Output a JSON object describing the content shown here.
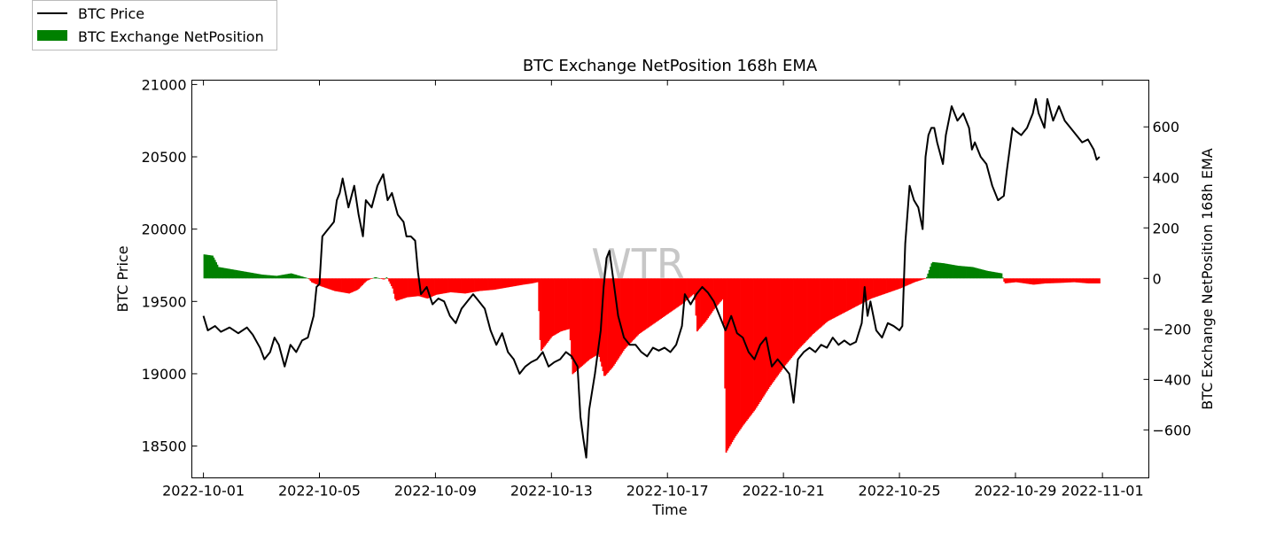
{
  "chart_data": {
    "type": "line",
    "title": "BTC Exchange NetPosition 168h EMA",
    "xlabel": "Time",
    "ylabel_left": "BTC Price",
    "ylabel_right": "BTC Exchange NetPosition 168h EMA",
    "watermark": "WTR",
    "x_range_days": [
      -0.4,
      32.6
    ],
    "x_ticks": [
      {
        "day": 0,
        "label": "2022-10-01"
      },
      {
        "day": 4,
        "label": "2022-10-05"
      },
      {
        "day": 8,
        "label": "2022-10-09"
      },
      {
        "day": 12,
        "label": "2022-10-13"
      },
      {
        "day": 16,
        "label": "2022-10-17"
      },
      {
        "day": 20,
        "label": "2022-10-21"
      },
      {
        "day": 24,
        "label": "2022-10-25"
      },
      {
        "day": 28,
        "label": "2022-10-29"
      },
      {
        "day": 31,
        "label": "2022-11-01"
      }
    ],
    "y_left_range": [
      18280,
      21030
    ],
    "y_left_ticks": [
      18500,
      19000,
      19500,
      20000,
      20500,
      21000
    ],
    "y_right_range": [
      -790,
      785
    ],
    "y_right_ticks": [
      -600,
      -400,
      -200,
      0,
      200,
      400,
      600
    ],
    "legend": [
      {
        "label": "BTC Price",
        "kind": "line",
        "color": "#000000"
      },
      {
        "label": "BTC Exchange NetPosition",
        "kind": "bar",
        "color": "#008000"
      }
    ],
    "positive_color": "#008000",
    "negative_color": "#ff0000",
    "series": [
      {
        "name": "BTC Price",
        "axis": "left",
        "points": [
          [
            0.0,
            19400
          ],
          [
            0.15,
            19300
          ],
          [
            0.4,
            19330
          ],
          [
            0.6,
            19290
          ],
          [
            0.9,
            19320
          ],
          [
            1.2,
            19280
          ],
          [
            1.5,
            19320
          ],
          [
            1.7,
            19270
          ],
          [
            1.95,
            19180
          ],
          [
            2.1,
            19100
          ],
          [
            2.3,
            19150
          ],
          [
            2.45,
            19250
          ],
          [
            2.6,
            19200
          ],
          [
            2.8,
            19050
          ],
          [
            3.0,
            19200
          ],
          [
            3.2,
            19150
          ],
          [
            3.4,
            19230
          ],
          [
            3.6,
            19250
          ],
          [
            3.8,
            19400
          ],
          [
            3.9,
            19600
          ],
          [
            4.0,
            19620
          ],
          [
            4.1,
            19950
          ],
          [
            4.3,
            20000
          ],
          [
            4.5,
            20050
          ],
          [
            4.6,
            20200
          ],
          [
            4.7,
            20250
          ],
          [
            4.8,
            20350
          ],
          [
            4.9,
            20250
          ],
          [
            5.0,
            20150
          ],
          [
            5.2,
            20300
          ],
          [
            5.35,
            20100
          ],
          [
            5.5,
            19950
          ],
          [
            5.6,
            20200
          ],
          [
            5.8,
            20150
          ],
          [
            6.0,
            20300
          ],
          [
            6.2,
            20380
          ],
          [
            6.35,
            20200
          ],
          [
            6.5,
            20250
          ],
          [
            6.7,
            20100
          ],
          [
            6.9,
            20050
          ],
          [
            7.0,
            19950
          ],
          [
            7.15,
            19950
          ],
          [
            7.3,
            19920
          ],
          [
            7.4,
            19700
          ],
          [
            7.5,
            19550
          ],
          [
            7.7,
            19600
          ],
          [
            7.9,
            19480
          ],
          [
            8.1,
            19520
          ],
          [
            8.3,
            19500
          ],
          [
            8.5,
            19400
          ],
          [
            8.7,
            19350
          ],
          [
            8.9,
            19450
          ],
          [
            9.1,
            19500
          ],
          [
            9.3,
            19550
          ],
          [
            9.5,
            19500
          ],
          [
            9.7,
            19450
          ],
          [
            9.9,
            19300
          ],
          [
            10.1,
            19200
          ],
          [
            10.3,
            19280
          ],
          [
            10.5,
            19150
          ],
          [
            10.7,
            19100
          ],
          [
            10.9,
            19000
          ],
          [
            11.1,
            19050
          ],
          [
            11.3,
            19080
          ],
          [
            11.5,
            19100
          ],
          [
            11.7,
            19150
          ],
          [
            11.9,
            19050
          ],
          [
            12.1,
            19080
          ],
          [
            12.3,
            19100
          ],
          [
            12.5,
            19150
          ],
          [
            12.7,
            19120
          ],
          [
            12.9,
            19050
          ],
          [
            13.0,
            18700
          ],
          [
            13.1,
            18550
          ],
          [
            13.2,
            18420
          ],
          [
            13.3,
            18750
          ],
          [
            13.5,
            19000
          ],
          [
            13.7,
            19300
          ],
          [
            13.8,
            19600
          ],
          [
            13.9,
            19800
          ],
          [
            14.0,
            19850
          ],
          [
            14.1,
            19700
          ],
          [
            14.3,
            19400
          ],
          [
            14.5,
            19250
          ],
          [
            14.7,
            19200
          ],
          [
            14.9,
            19200
          ],
          [
            15.1,
            19150
          ],
          [
            15.3,
            19120
          ],
          [
            15.5,
            19180
          ],
          [
            15.7,
            19160
          ],
          [
            15.9,
            19180
          ],
          [
            16.1,
            19150
          ],
          [
            16.3,
            19200
          ],
          [
            16.5,
            19330
          ],
          [
            16.6,
            19550
          ],
          [
            16.8,
            19480
          ],
          [
            17.0,
            19550
          ],
          [
            17.2,
            19600
          ],
          [
            17.4,
            19560
          ],
          [
            17.6,
            19500
          ],
          [
            17.8,
            19400
          ],
          [
            18.0,
            19300
          ],
          [
            18.2,
            19400
          ],
          [
            18.4,
            19280
          ],
          [
            18.6,
            19250
          ],
          [
            18.8,
            19150
          ],
          [
            19.0,
            19100
          ],
          [
            19.2,
            19200
          ],
          [
            19.4,
            19250
          ],
          [
            19.6,
            19050
          ],
          [
            19.8,
            19100
          ],
          [
            20.0,
            19050
          ],
          [
            20.2,
            19000
          ],
          [
            20.35,
            18800
          ],
          [
            20.5,
            19100
          ],
          [
            20.7,
            19150
          ],
          [
            20.9,
            19180
          ],
          [
            21.1,
            19150
          ],
          [
            21.3,
            19200
          ],
          [
            21.5,
            19180
          ],
          [
            21.7,
            19250
          ],
          [
            21.9,
            19200
          ],
          [
            22.1,
            19230
          ],
          [
            22.3,
            19200
          ],
          [
            22.5,
            19220
          ],
          [
            22.7,
            19350
          ],
          [
            22.8,
            19600
          ],
          [
            22.9,
            19400
          ],
          [
            23.0,
            19500
          ],
          [
            23.2,
            19300
          ],
          [
            23.4,
            19250
          ],
          [
            23.6,
            19350
          ],
          [
            23.8,
            19330
          ],
          [
            24.0,
            19300
          ],
          [
            24.1,
            19330
          ],
          [
            24.2,
            19900
          ],
          [
            24.35,
            20300
          ],
          [
            24.5,
            20200
          ],
          [
            24.65,
            20150
          ],
          [
            24.8,
            20000
          ],
          [
            24.9,
            20500
          ],
          [
            25.0,
            20650
          ],
          [
            25.1,
            20700
          ],
          [
            25.2,
            20700
          ],
          [
            25.3,
            20600
          ],
          [
            25.5,
            20450
          ],
          [
            25.6,
            20650
          ],
          [
            25.8,
            20850
          ],
          [
            26.0,
            20750
          ],
          [
            26.2,
            20800
          ],
          [
            26.4,
            20700
          ],
          [
            26.5,
            20550
          ],
          [
            26.6,
            20600
          ],
          [
            26.8,
            20500
          ],
          [
            27.0,
            20450
          ],
          [
            27.2,
            20300
          ],
          [
            27.4,
            20200
          ],
          [
            27.6,
            20230
          ],
          [
            27.7,
            20400
          ],
          [
            27.8,
            20550
          ],
          [
            27.9,
            20700
          ],
          [
            28.0,
            20680
          ],
          [
            28.2,
            20650
          ],
          [
            28.4,
            20700
          ],
          [
            28.6,
            20800
          ],
          [
            28.7,
            20900
          ],
          [
            28.8,
            20800
          ],
          [
            29.0,
            20700
          ],
          [
            29.1,
            20900
          ],
          [
            29.3,
            20750
          ],
          [
            29.5,
            20850
          ],
          [
            29.7,
            20750
          ],
          [
            29.9,
            20700
          ],
          [
            30.1,
            20650
          ],
          [
            30.3,
            20600
          ],
          [
            30.5,
            20620
          ],
          [
            30.7,
            20550
          ],
          [
            30.8,
            20480
          ],
          [
            30.9,
            20500
          ]
        ]
      },
      {
        "name": "BTC Exchange NetPosition",
        "axis": "right",
        "points": [
          [
            0.0,
            95
          ],
          [
            0.3,
            90
          ],
          [
            0.5,
            45
          ],
          [
            1.0,
            35
          ],
          [
            1.5,
            25
          ],
          [
            2.0,
            15
          ],
          [
            2.5,
            10
          ],
          [
            3.0,
            20
          ],
          [
            3.3,
            10
          ],
          [
            3.6,
            0
          ],
          [
            3.7,
            -15
          ],
          [
            4.0,
            -30
          ],
          [
            4.5,
            -50
          ],
          [
            5.0,
            -60
          ],
          [
            5.3,
            -45
          ],
          [
            5.6,
            -10
          ],
          [
            5.9,
            5
          ],
          [
            6.2,
            -5
          ],
          [
            6.3,
            5
          ],
          [
            6.5,
            -40
          ],
          [
            6.6,
            -90
          ],
          [
            7.0,
            -75
          ],
          [
            7.4,
            -70
          ],
          [
            7.7,
            -80
          ],
          [
            8.0,
            -65
          ],
          [
            8.5,
            -55
          ],
          [
            9.0,
            -60
          ],
          [
            9.5,
            -50
          ],
          [
            10.0,
            -45
          ],
          [
            10.5,
            -35
          ],
          [
            11.0,
            -25
          ],
          [
            11.3,
            -20
          ],
          [
            11.5,
            -15
          ],
          [
            11.6,
            -290
          ],
          [
            11.8,
            -260
          ],
          [
            12.0,
            -230
          ],
          [
            12.3,
            -210
          ],
          [
            12.6,
            -200
          ],
          [
            12.7,
            -380
          ],
          [
            13.0,
            -350
          ],
          [
            13.3,
            -320
          ],
          [
            13.6,
            -300
          ],
          [
            13.8,
            -390
          ],
          [
            14.1,
            -350
          ],
          [
            14.5,
            -280
          ],
          [
            15.0,
            -220
          ],
          [
            15.5,
            -180
          ],
          [
            16.0,
            -140
          ],
          [
            16.5,
            -100
          ],
          [
            16.9,
            -60
          ],
          [
            17.0,
            -210
          ],
          [
            17.3,
            -170
          ],
          [
            17.6,
            -120
          ],
          [
            17.9,
            -80
          ],
          [
            18.0,
            -690
          ],
          [
            18.3,
            -630
          ],
          [
            18.6,
            -580
          ],
          [
            19.0,
            -520
          ],
          [
            19.5,
            -430
          ],
          [
            20.0,
            -350
          ],
          [
            20.5,
            -280
          ],
          [
            21.0,
            -220
          ],
          [
            21.5,
            -170
          ],
          [
            22.0,
            -140
          ],
          [
            22.5,
            -110
          ],
          [
            23.0,
            -80
          ],
          [
            23.5,
            -60
          ],
          [
            24.0,
            -40
          ],
          [
            24.5,
            -15
          ],
          [
            24.9,
            0
          ],
          [
            25.1,
            65
          ],
          [
            25.5,
            60
          ],
          [
            26.0,
            50
          ],
          [
            26.5,
            45
          ],
          [
            27.0,
            30
          ],
          [
            27.5,
            20
          ],
          [
            27.6,
            -20
          ],
          [
            28.0,
            -15
          ],
          [
            28.3,
            -20
          ],
          [
            28.6,
            -25
          ],
          [
            29.0,
            -20
          ],
          [
            29.5,
            -18
          ],
          [
            30.0,
            -15
          ],
          [
            30.5,
            -20
          ],
          [
            30.9,
            -20
          ]
        ]
      }
    ]
  }
}
